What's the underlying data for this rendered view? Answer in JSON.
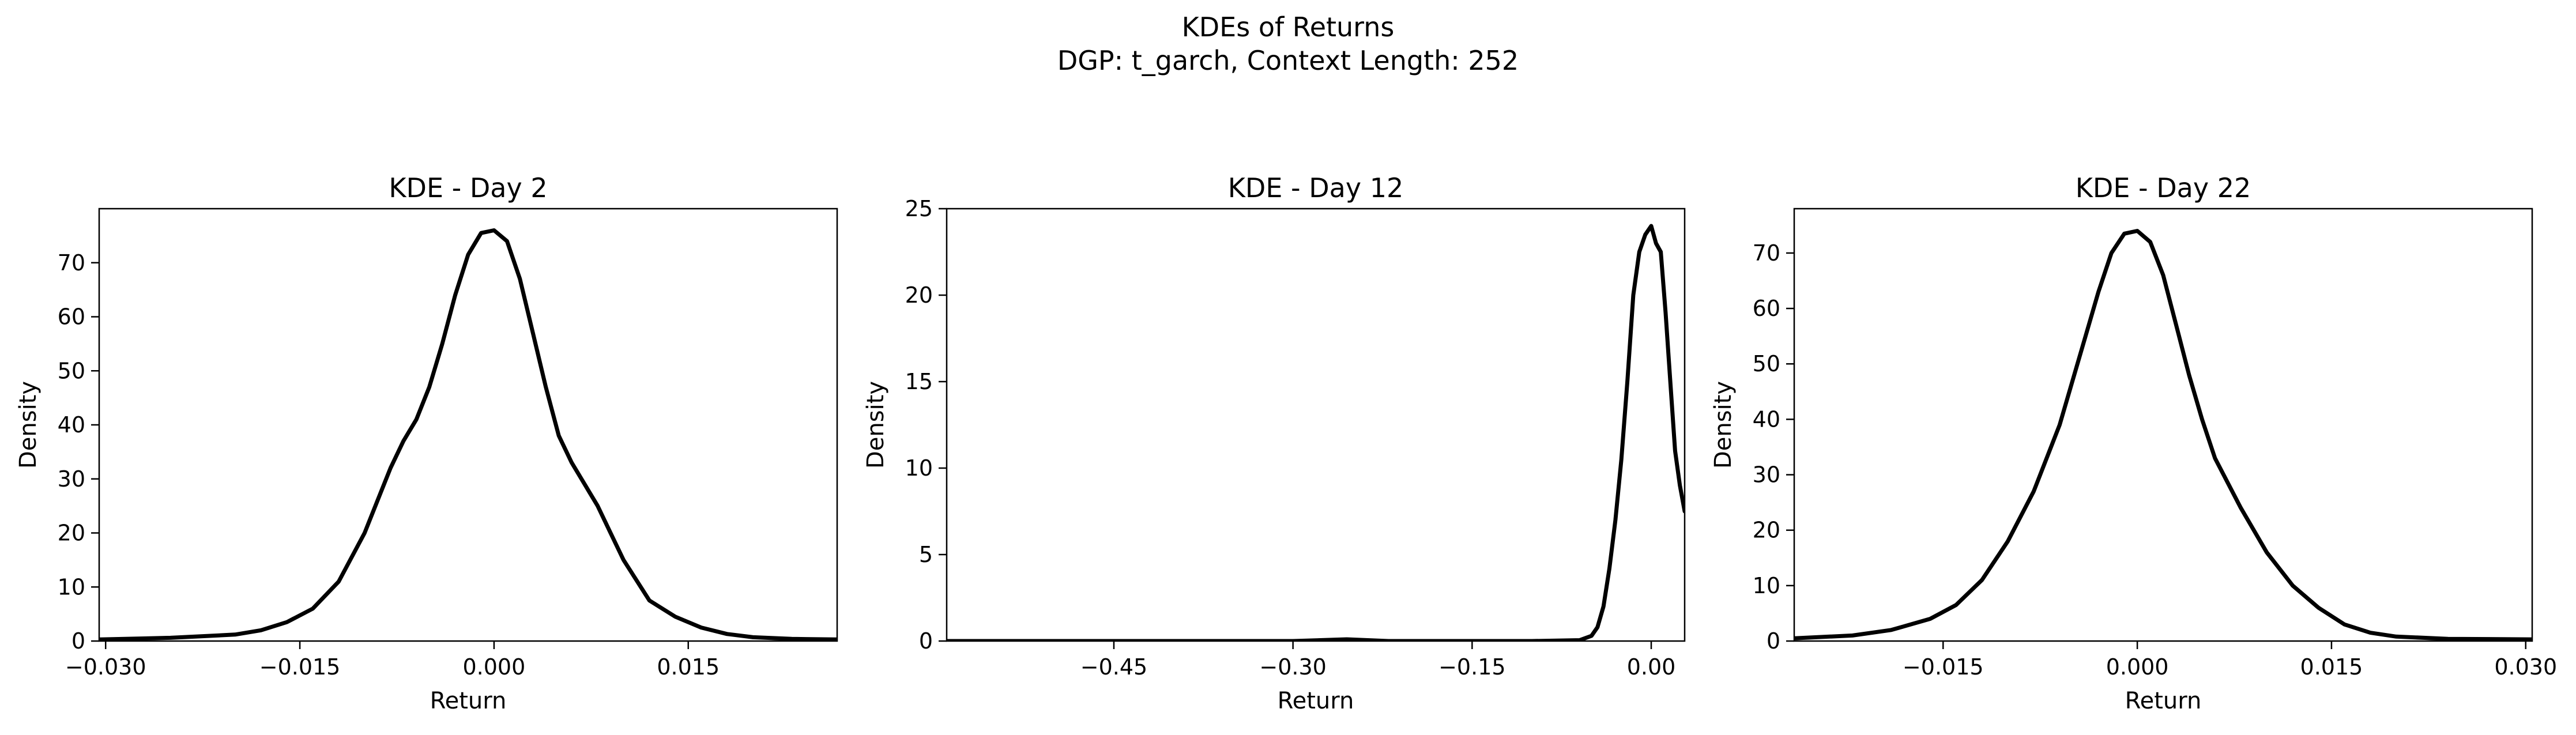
{
  "figure": {
    "title_line1": "KDEs of Returns",
    "title_line2": "DGP: t_garch, Context Length: 252"
  },
  "style": {
    "line_color": "#000000",
    "background": "#ffffff"
  },
  "chart_data": [
    {
      "type": "line",
      "title": "KDE - Day 2",
      "xlabel": "Return",
      "ylabel": "Density",
      "xlim": [
        -0.0305,
        0.0265
      ],
      "ylim": [
        0,
        80
      ],
      "xticks": [
        -0.03,
        -0.015,
        0.0,
        0.015
      ],
      "xtick_labels": [
        "−0.030",
        "−0.015",
        "0.000",
        "0.015"
      ],
      "yticks": [
        0,
        10,
        20,
        30,
        40,
        50,
        60,
        70
      ],
      "ytick_labels": [
        "0",
        "10",
        "20",
        "30",
        "40",
        "50",
        "60",
        "70"
      ],
      "grid": false,
      "series": [
        {
          "x": [
            -0.0305,
            -0.025,
            -0.02,
            -0.018,
            -0.016,
            -0.014,
            -0.012,
            -0.01,
            -0.009,
            -0.008,
            -0.007,
            -0.006,
            -0.005,
            -0.004,
            -0.003,
            -0.002,
            -0.001,
            0.0,
            0.001,
            0.002,
            0.003,
            0.004,
            0.005,
            0.006,
            0.007,
            0.008,
            0.009,
            0.01,
            0.012,
            0.014,
            0.016,
            0.018,
            0.02,
            0.023,
            0.0265
          ],
          "y": [
            0.3,
            0.6,
            1.2,
            2.0,
            3.5,
            6.0,
            11.0,
            20.0,
            26.0,
            32.0,
            37.0,
            41.0,
            47.0,
            55.0,
            64.0,
            71.5,
            75.5,
            76.0,
            74.0,
            67.0,
            57.0,
            47.0,
            38.0,
            33.0,
            29.0,
            25.0,
            20.0,
            15.0,
            7.5,
            4.5,
            2.5,
            1.3,
            0.7,
            0.4,
            0.3
          ]
        }
      ]
    },
    {
      "type": "line",
      "title": "KDE - Day 12",
      "xlabel": "Return",
      "ylabel": "Density",
      "xlim": [
        -0.59,
        0.028
      ],
      "ylim": [
        0,
        25
      ],
      "xticks": [
        -0.45,
        -0.3,
        -0.15,
        0.0
      ],
      "xtick_labels": [
        "−0.45",
        "−0.30",
        "−0.15",
        "0.00"
      ],
      "yticks": [
        0,
        5,
        10,
        15,
        20,
        25
      ],
      "ytick_labels": [
        "0",
        "5",
        "10",
        "15",
        "20",
        "25"
      ],
      "grid": false,
      "series": [
        {
          "x": [
            -0.59,
            -0.4,
            -0.3,
            -0.255,
            -0.22,
            -0.1,
            -0.06,
            -0.05,
            -0.045,
            -0.04,
            -0.035,
            -0.03,
            -0.025,
            -0.02,
            -0.015,
            -0.01,
            -0.005,
            0.0,
            0.004,
            0.008,
            0.012,
            0.016,
            0.02,
            0.024,
            0.028
          ],
          "y": [
            0.0,
            0.0,
            0.0,
            0.1,
            0.0,
            0.0,
            0.05,
            0.3,
            0.8,
            2.0,
            4.2,
            7.0,
            10.5,
            15.0,
            20.0,
            22.5,
            23.5,
            24.0,
            23.0,
            22.5,
            19.0,
            15.0,
            11.0,
            9.0,
            7.5
          ]
        }
      ]
    },
    {
      "type": "line",
      "title": "KDE - Day 22",
      "xlabel": "Return",
      "ylabel": "Density",
      "xlim": [
        -0.0265,
        0.0305
      ],
      "ylim": [
        0,
        78
      ],
      "xticks": [
        -0.015,
        0.0,
        0.015,
        0.03
      ],
      "xtick_labels": [
        "−0.015",
        "0.000",
        "0.015",
        "0.030"
      ],
      "yticks": [
        0,
        10,
        20,
        30,
        40,
        50,
        60,
        70
      ],
      "ytick_labels": [
        "0",
        "10",
        "20",
        "30",
        "40",
        "50",
        "60",
        "70"
      ],
      "grid": false,
      "series": [
        {
          "x": [
            -0.0265,
            -0.022,
            -0.019,
            -0.016,
            -0.014,
            -0.012,
            -0.01,
            -0.008,
            -0.006,
            -0.004,
            -0.003,
            -0.002,
            -0.001,
            0.0,
            0.001,
            0.002,
            0.003,
            0.004,
            0.005,
            0.006,
            0.008,
            0.01,
            0.012,
            0.014,
            0.016,
            0.018,
            0.02,
            0.024,
            0.0305
          ],
          "y": [
            0.5,
            1.0,
            2.0,
            4.0,
            6.5,
            11.0,
            18.0,
            27.0,
            39.0,
            55.0,
            63.0,
            70.0,
            73.5,
            74.0,
            72.0,
            66.0,
            57.0,
            48.0,
            40.0,
            33.0,
            24.0,
            16.0,
            10.0,
            6.0,
            3.0,
            1.5,
            0.8,
            0.4,
            0.3
          ]
        }
      ]
    }
  ]
}
